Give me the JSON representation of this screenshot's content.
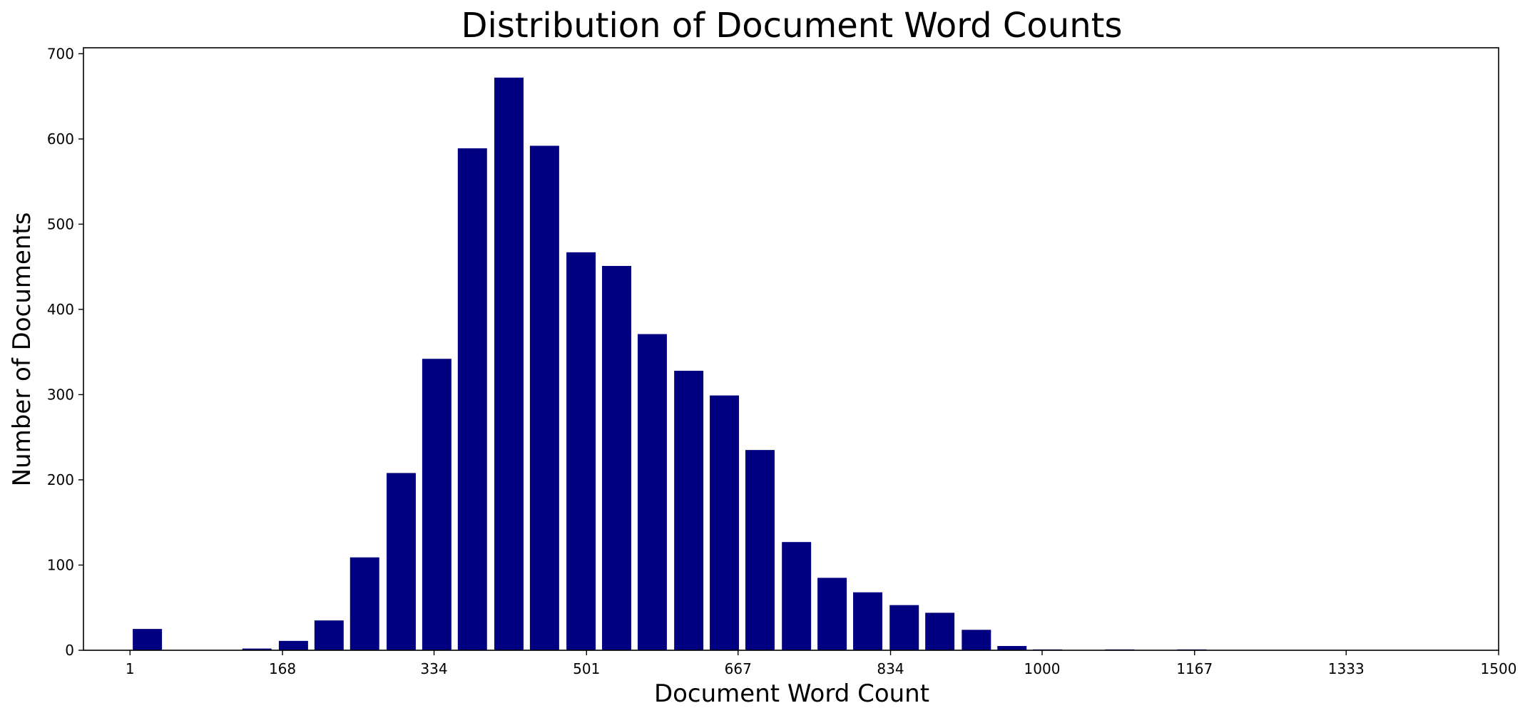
{
  "chart_data": {
    "type": "bar",
    "title": "Distribution of Document Word Counts",
    "xlabel": "Document Word Count",
    "ylabel": "Number of Documents",
    "xlim": [
      -50,
      1500
    ],
    "ylim": [
      0,
      707
    ],
    "xticks": [
      1,
      168,
      334,
      501,
      667,
      834,
      1000,
      1167,
      1333,
      1500
    ],
    "xtick_labels": [
      "1",
      "168",
      "334",
      "501",
      "667",
      "834",
      "1000",
      "1167",
      "1333",
      "1500"
    ],
    "yticks": [
      0,
      100,
      200,
      300,
      400,
      500,
      600,
      700
    ],
    "ytick_labels": [
      "0",
      "100",
      "200",
      "300",
      "400",
      "500",
      "600",
      "700"
    ],
    "bar_width": 32,
    "bar_color": "#000080",
    "grid": false,
    "bars": [
      {
        "x": 20,
        "value": 25
      },
      {
        "x": 140,
        "value": 2
      },
      {
        "x": 180,
        "value": 11
      },
      {
        "x": 219,
        "value": 35
      },
      {
        "x": 258,
        "value": 109
      },
      {
        "x": 298,
        "value": 208
      },
      {
        "x": 337,
        "value": 342
      },
      {
        "x": 376,
        "value": 589
      },
      {
        "x": 416,
        "value": 672
      },
      {
        "x": 455,
        "value": 592
      },
      {
        "x": 495,
        "value": 467
      },
      {
        "x": 534,
        "value": 451
      },
      {
        "x": 573,
        "value": 371
      },
      {
        "x": 613,
        "value": 328
      },
      {
        "x": 652,
        "value": 299
      },
      {
        "x": 691,
        "value": 235
      },
      {
        "x": 731,
        "value": 127
      },
      {
        "x": 770,
        "value": 85
      },
      {
        "x": 809,
        "value": 68
      },
      {
        "x": 849,
        "value": 53
      },
      {
        "x": 888,
        "value": 44
      },
      {
        "x": 928,
        "value": 24
      },
      {
        "x": 967,
        "value": 5
      },
      {
        "x": 1006,
        "value": 1
      },
      {
        "x": 1085,
        "value": 1
      },
      {
        "x": 1164,
        "value": 1
      }
    ]
  }
}
